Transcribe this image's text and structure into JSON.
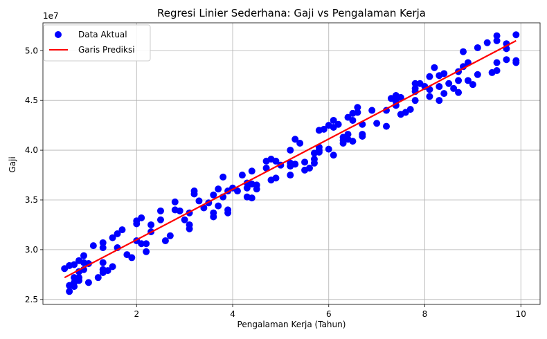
{
  "chart_data": {
    "type": "scatter",
    "title": "Regresi Linier Sederhana: Gaji vs Pengalaman Kerja",
    "xlabel": "Pengalaman Kerja (Tahun)",
    "ylabel": "Gaji",
    "y_scale_note": "1e7",
    "xlim": [
      0.05,
      10.4
    ],
    "ylim": [
      2.45,
      5.28
    ],
    "x_ticks": [
      2,
      4,
      6,
      8,
      10
    ],
    "y_ticks": [
      2.5,
      3.0,
      3.5,
      4.0,
      4.5,
      5.0
    ],
    "grid": true,
    "legend_position": "top-left",
    "series": [
      {
        "name": "Data Aktual",
        "kind": "scatter",
        "color": "#0000ff",
        "points": [
          [
            0.5,
            2.81
          ],
          [
            0.6,
            2.84
          ],
          [
            0.6,
            2.64
          ],
          [
            0.6,
            2.58
          ],
          [
            0.7,
            2.85
          ],
          [
            0.7,
            2.72
          ],
          [
            0.7,
            2.67
          ],
          [
            0.7,
            2.63
          ],
          [
            0.8,
            2.89
          ],
          [
            0.8,
            2.78
          ],
          [
            0.8,
            2.72
          ],
          [
            0.8,
            2.69
          ],
          [
            0.9,
            2.94
          ],
          [
            0.9,
            2.87
          ],
          [
            0.9,
            2.8
          ],
          [
            1.0,
            2.86
          ],
          [
            1.0,
            2.67
          ],
          [
            1.1,
            3.04
          ],
          [
            1.2,
            2.72
          ],
          [
            1.3,
            3.07
          ],
          [
            1.3,
            3.02
          ],
          [
            1.3,
            2.87
          ],
          [
            1.3,
            2.8
          ],
          [
            1.3,
            2.77
          ],
          [
            1.4,
            2.79
          ],
          [
            1.5,
            3.12
          ],
          [
            1.5,
            2.83
          ],
          [
            1.6,
            3.16
          ],
          [
            1.6,
            3.02
          ],
          [
            1.7,
            3.2
          ],
          [
            1.8,
            2.95
          ],
          [
            1.9,
            2.92
          ],
          [
            2.0,
            3.29
          ],
          [
            2.0,
            3.26
          ],
          [
            2.0,
            3.09
          ],
          [
            2.1,
            3.32
          ],
          [
            2.1,
            3.06
          ],
          [
            2.2,
            3.06
          ],
          [
            2.2,
            2.98
          ],
          [
            2.3,
            3.25
          ],
          [
            2.3,
            3.18
          ],
          [
            2.5,
            3.39
          ],
          [
            2.5,
            3.3
          ],
          [
            2.6,
            3.09
          ],
          [
            2.7,
            3.14
          ],
          [
            2.8,
            3.48
          ],
          [
            2.8,
            3.4
          ],
          [
            2.9,
            3.39
          ],
          [
            3.0,
            3.3
          ],
          [
            3.1,
            3.37
          ],
          [
            3.1,
            3.25
          ],
          [
            3.1,
            3.21
          ],
          [
            3.2,
            3.59
          ],
          [
            3.2,
            3.56
          ],
          [
            3.3,
            3.49
          ],
          [
            3.4,
            3.42
          ],
          [
            3.5,
            3.47
          ],
          [
            3.6,
            3.55
          ],
          [
            3.6,
            3.37
          ],
          [
            3.6,
            3.33
          ],
          [
            3.7,
            3.61
          ],
          [
            3.7,
            3.44
          ],
          [
            3.8,
            3.73
          ],
          [
            3.8,
            3.53
          ],
          [
            3.9,
            3.4
          ],
          [
            3.9,
            3.37
          ],
          [
            3.9,
            3.59
          ],
          [
            4.0,
            3.62
          ],
          [
            4.1,
            3.59
          ],
          [
            4.2,
            3.75
          ],
          [
            4.3,
            3.62
          ],
          [
            4.3,
            3.53
          ],
          [
            4.3,
            3.67
          ],
          [
            4.4,
            3.79
          ],
          [
            4.4,
            3.66
          ],
          [
            4.4,
            3.52
          ],
          [
            4.5,
            3.65
          ],
          [
            4.5,
            3.61
          ],
          [
            4.7,
            3.89
          ],
          [
            4.7,
            3.82
          ],
          [
            4.8,
            3.91
          ],
          [
            4.8,
            3.7
          ],
          [
            4.9,
            3.89
          ],
          [
            4.9,
            3.72
          ],
          [
            5.0,
            3.85
          ],
          [
            5.2,
            4.0
          ],
          [
            5.2,
            3.87
          ],
          [
            5.2,
            3.84
          ],
          [
            5.2,
            3.75
          ],
          [
            5.3,
            4.11
          ],
          [
            5.3,
            3.86
          ],
          [
            5.4,
            4.07
          ],
          [
            5.5,
            3.88
          ],
          [
            5.5,
            3.8
          ],
          [
            5.6,
            3.82
          ],
          [
            5.7,
            3.97
          ],
          [
            5.7,
            3.91
          ],
          [
            5.7,
            3.87
          ],
          [
            5.8,
            4.03
          ],
          [
            5.8,
            4.0
          ],
          [
            5.8,
            3.98
          ],
          [
            5.8,
            4.2
          ],
          [
            5.9,
            4.21
          ],
          [
            6.0,
            4.25
          ],
          [
            6.0,
            4.01
          ],
          [
            6.1,
            4.3
          ],
          [
            6.1,
            4.23
          ],
          [
            6.1,
            3.95
          ],
          [
            6.2,
            4.26
          ],
          [
            6.3,
            4.13
          ],
          [
            6.3,
            4.1
          ],
          [
            6.3,
            4.07
          ],
          [
            6.4,
            4.33
          ],
          [
            6.4,
            4.16
          ],
          [
            6.4,
            4.11
          ],
          [
            6.5,
            4.37
          ],
          [
            6.5,
            4.3
          ],
          [
            6.5,
            4.09
          ],
          [
            6.6,
            4.43
          ],
          [
            6.6,
            4.38
          ],
          [
            6.7,
            4.26
          ],
          [
            6.7,
            4.16
          ],
          [
            6.7,
            4.14
          ],
          [
            6.9,
            4.4
          ],
          [
            7.0,
            4.27
          ],
          [
            7.2,
            4.4
          ],
          [
            7.2,
            4.24
          ],
          [
            7.3,
            4.52
          ],
          [
            7.4,
            4.55
          ],
          [
            7.4,
            4.49
          ],
          [
            7.4,
            4.45
          ],
          [
            7.5,
            4.53
          ],
          [
            7.5,
            4.36
          ],
          [
            7.6,
            4.38
          ],
          [
            7.7,
            4.41
          ],
          [
            7.8,
            4.67
          ],
          [
            7.8,
            4.62
          ],
          [
            7.8,
            4.59
          ],
          [
            7.8,
            4.5
          ],
          [
            7.9,
            4.67
          ],
          [
            8.0,
            4.64
          ],
          [
            8.1,
            4.74
          ],
          [
            8.1,
            4.61
          ],
          [
            8.1,
            4.54
          ],
          [
            8.2,
            4.83
          ],
          [
            8.3,
            4.64
          ],
          [
            8.3,
            4.5
          ],
          [
            8.3,
            4.75
          ],
          [
            8.4,
            4.77
          ],
          [
            8.4,
            4.57
          ],
          [
            8.5,
            4.67
          ],
          [
            8.6,
            4.62
          ],
          [
            8.7,
            4.79
          ],
          [
            8.7,
            4.7
          ],
          [
            8.7,
            4.58
          ],
          [
            8.8,
            4.99
          ],
          [
            8.8,
            4.84
          ],
          [
            8.9,
            4.88
          ],
          [
            8.9,
            4.7
          ],
          [
            9.0,
            4.66
          ],
          [
            9.1,
            5.03
          ],
          [
            9.1,
            4.76
          ],
          [
            9.3,
            5.08
          ],
          [
            9.4,
            4.78
          ],
          [
            9.5,
            5.15
          ],
          [
            9.5,
            5.1
          ],
          [
            9.5,
            4.88
          ],
          [
            9.5,
            4.8
          ],
          [
            9.7,
            5.07
          ],
          [
            9.7,
            5.02
          ],
          [
            9.7,
            4.91
          ],
          [
            9.9,
            5.16
          ],
          [
            9.9,
            4.9
          ],
          [
            9.9,
            4.88
          ]
        ]
      },
      {
        "name": "Garis Prediksi",
        "kind": "line",
        "color": "#ff0000",
        "points": [
          [
            0.5,
            2.72
          ],
          [
            9.9,
            5.1
          ]
        ]
      }
    ]
  }
}
